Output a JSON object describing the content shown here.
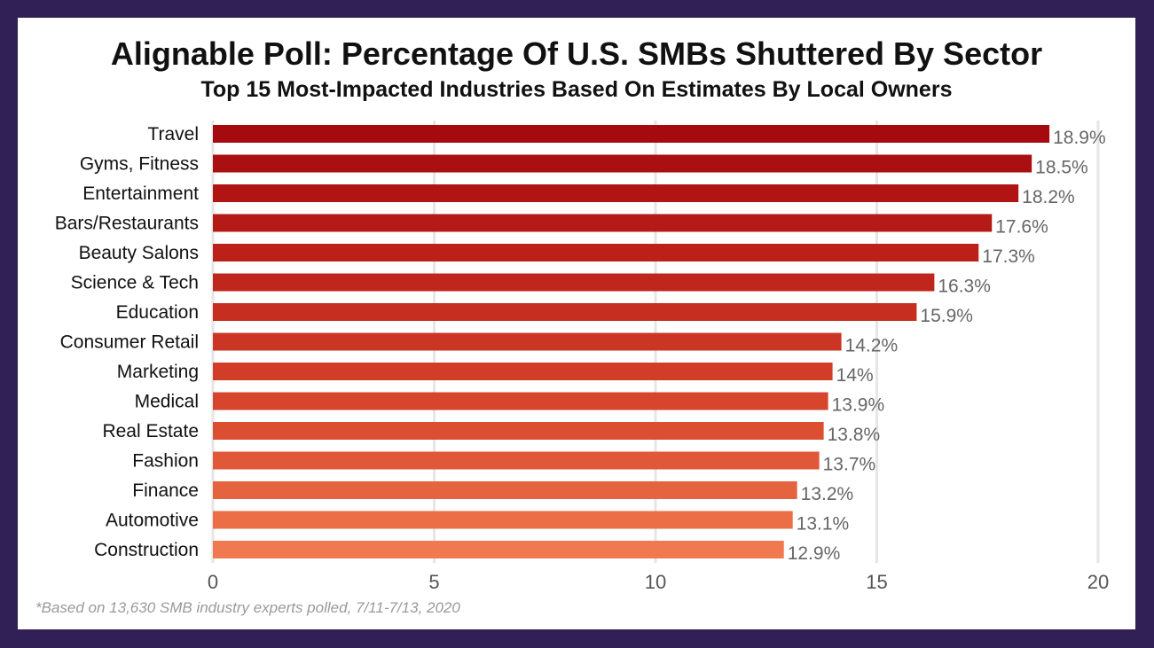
{
  "chart_data": {
    "type": "bar",
    "orientation": "horizontal",
    "title": "Alignable Poll: Percentage Of U.S. SMBs Shuttered By Sector",
    "subtitle": "Top 15 Most-Impacted Industries Based On Estimates By Local Owners",
    "categories": [
      "Travel",
      "Gyms, Fitness",
      "Entertainment",
      "Bars/Restaurants",
      "Beauty Salons",
      "Science & Tech",
      "Education",
      "Consumer Retail",
      "Marketing",
      "Medical",
      "Real Estate",
      "Fashion",
      "Finance",
      "Automotive",
      "Construction"
    ],
    "values": [
      18.9,
      18.5,
      18.2,
      17.6,
      17.3,
      16.3,
      15.9,
      14.2,
      14,
      13.9,
      13.8,
      13.7,
      13.2,
      13.1,
      12.9
    ],
    "value_labels": [
      "18.9%",
      "18.5%",
      "18.2%",
      "17.6%",
      "17.3%",
      "16.3%",
      "15.9%",
      "14.2%",
      "14%",
      "13.9%",
      "13.8%",
      "13.7%",
      "13.2%",
      "13.1%",
      "12.9%"
    ],
    "bar_colors": [
      "#a50a0e",
      "#aa0f11",
      "#b01513",
      "#b51b16",
      "#bb2119",
      "#c0271c",
      "#c62e1f",
      "#cb3523",
      "#d13d27",
      "#d6452c",
      "#dc4e32",
      "#e15838",
      "#e6633f",
      "#eb6e47",
      "#f0794f"
    ],
    "xlim": [
      0,
      20
    ],
    "xticks": [
      0,
      5,
      10,
      15,
      20
    ],
    "xlabel": "",
    "ylabel": "",
    "grid": true,
    "legend": "none"
  },
  "footnote": "*Based on 13,630 SMB industry experts polled, 7/11-7/13, 2020",
  "colors": {
    "frame": "#312055",
    "background": "#ffffff",
    "gridline": "#e6e6e6"
  }
}
